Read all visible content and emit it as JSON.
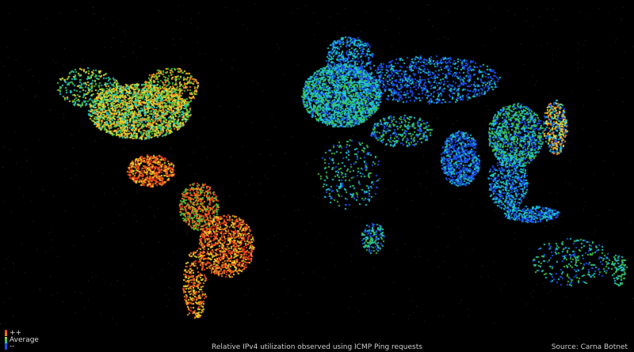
{
  "legend": {
    "high_label": "++",
    "mid_label": "Average",
    "low_label": "--",
    "scale_colors": [
      "#e8401a",
      "#f08a1c",
      "#e8d830",
      "#40c040",
      "#20c8c8",
      "#1a50e8"
    ]
  },
  "caption": "Relative IPv4 utilization observed using ICMP Ping requests",
  "source": "Source: Carna Botnet",
  "background_color": "#000000",
  "coastline_color": "#8a8a8a"
}
